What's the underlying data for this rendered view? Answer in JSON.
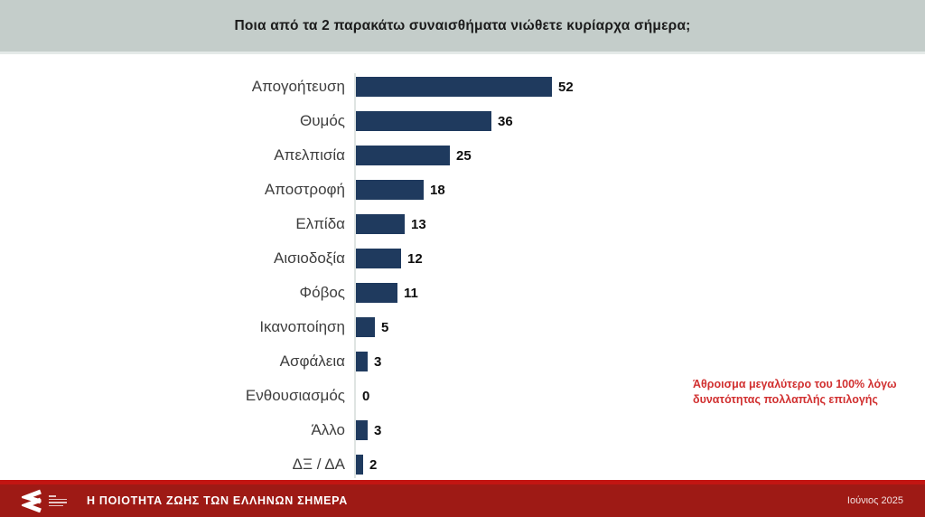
{
  "header": {
    "title": "Ποια από τα 2 παρακάτω συναισθήματα νιώθετε κυρίαρχα σήμερα;"
  },
  "chart_data": {
    "type": "bar",
    "orientation": "horizontal",
    "title": "Ποια από τα 2 παρακάτω συναισθήματα νιώθετε κυρίαρχα σήμερα;",
    "categories": [
      "Απογοήτευση",
      "Θυμός",
      "Απελπισία",
      "Αποστροφή",
      "Ελπίδα",
      "Αισιοδοξία",
      "Φόβος",
      "Ικανοποίηση",
      "Ασφάλεια",
      "Ενθουσιασμός",
      "Άλλο",
      "ΔΞ / ΔΑ"
    ],
    "values": [
      52,
      36,
      25,
      18,
      13,
      12,
      11,
      5,
      3,
      0,
      3,
      2
    ],
    "unit": "%",
    "xlim": [
      0,
      60
    ],
    "grid": false,
    "value_labels": true,
    "bar_color": "#1f3a5e",
    "axis_line_color": "#dfe4e2"
  },
  "annotation": {
    "text": "Άθροισμα μεγαλύτερο του 100% λόγω δυνατότητας πολλαπλής επιλογής",
    "color": "#d13030"
  },
  "footer": {
    "title": "Η ΠΟΙΟΤΗΤΑ ΖΩΗΣ ΤΩΝ ΕΛΛΗΝΩΝ ΣΗΜΕΡΑ",
    "date": "Ιούνιος 2025",
    "logo": "chevron-mark",
    "background_color": "#9e1a15",
    "accent_color": "#c21512"
  }
}
